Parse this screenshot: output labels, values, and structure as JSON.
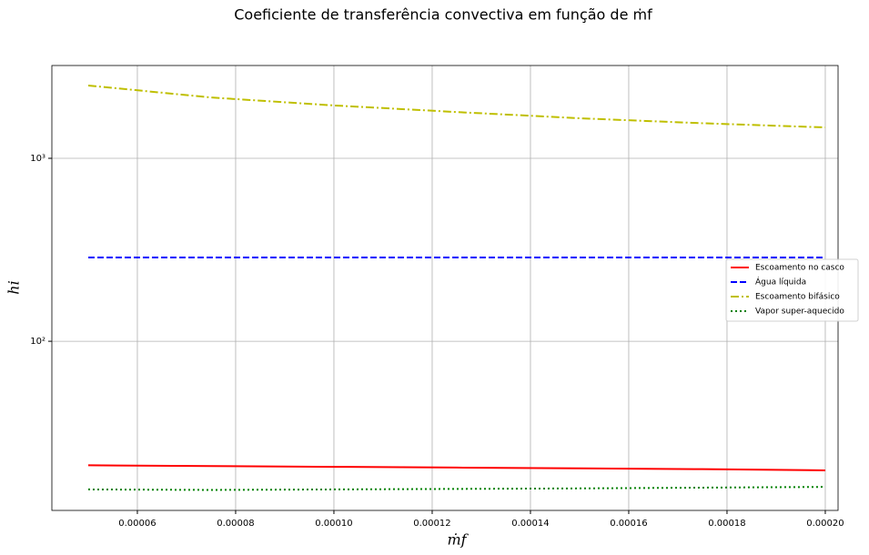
{
  "chart_data": {
    "type": "line",
    "title": "Coeficiente de transferência convectiva em função de ṁf",
    "xlabel": "ṁf",
    "ylabel": "hi",
    "x": [
      5e-05,
      7.5e-05,
      0.0001,
      0.000125,
      0.00015,
      0.000175,
      0.0002
    ],
    "series": [
      {
        "name": "Escoamento no casco",
        "color": "#ff0000",
        "linestyle": "solid",
        "values": [
          21.0,
          20.8,
          20.6,
          20.4,
          20.2,
          20.0,
          19.7
        ]
      },
      {
        "name": "Água líquida",
        "color": "#0000ff",
        "linestyle": "dashed",
        "values": [
          287,
          287,
          287,
          287,
          287,
          287,
          287
        ]
      },
      {
        "name": "Escoamento bifásico",
        "color": "#bfbf00",
        "linestyle": "dashdot",
        "values": [
          2500,
          2150,
          1945,
          1790,
          1655,
          1555,
          1475
        ]
      },
      {
        "name": "Vapor super-aquecido",
        "color": "#008000",
        "linestyle": "dotted",
        "values": [
          15.5,
          15.4,
          15.5,
          15.6,
          15.7,
          15.85,
          16.0
        ]
      }
    ],
    "xlim": [
      4.26e-05,
      0.0002026
    ],
    "ylim": [
      11.9,
      3215
    ],
    "log_y": true,
    "grid": true,
    "legend": "center right",
    "xticks": [
      {
        "value": 6e-05,
        "label": "0.00006"
      },
      {
        "value": 8e-05,
        "label": "0.00008"
      },
      {
        "value": 0.0001,
        "label": "0.00010"
      },
      {
        "value": 0.00012,
        "label": "0.00012"
      },
      {
        "value": 0.00014,
        "label": "0.00014"
      },
      {
        "value": 0.00016,
        "label": "0.00016"
      },
      {
        "value": 0.00018,
        "label": "0.00018"
      },
      {
        "value": 0.0002,
        "label": "0.00020"
      }
    ],
    "yticks": [
      {
        "value": 100,
        "label": "10²"
      },
      {
        "value": 1000,
        "label": "10³"
      }
    ]
  }
}
